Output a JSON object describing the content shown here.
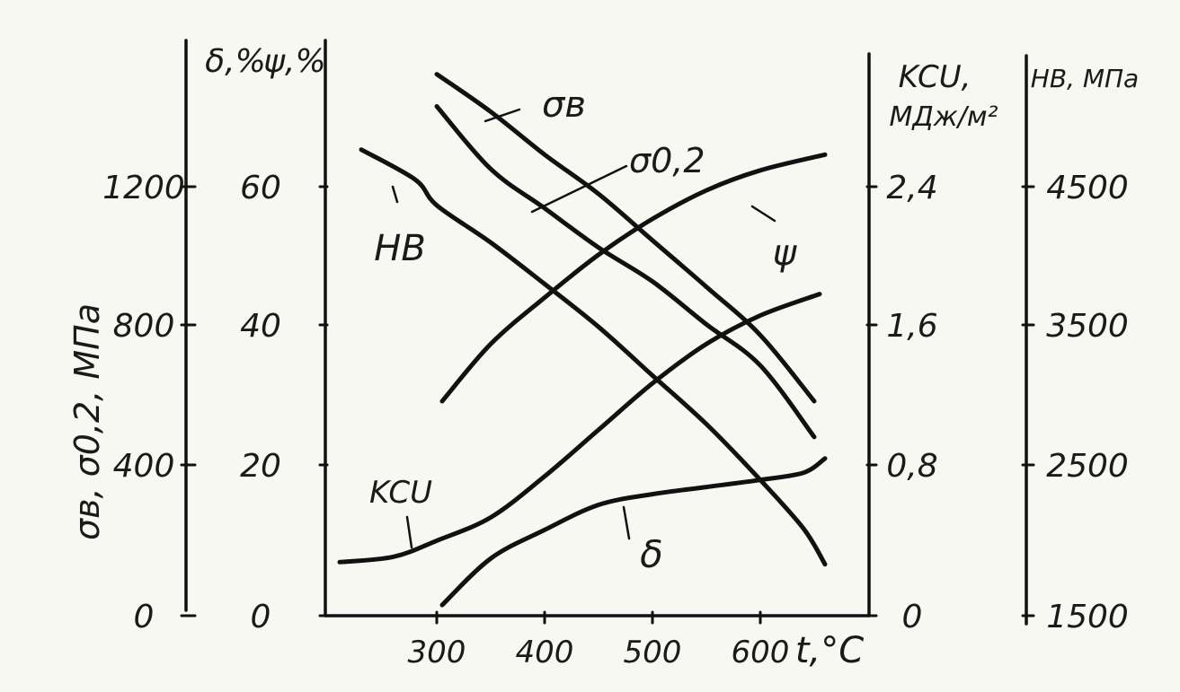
{
  "chart_data": {
    "type": "line",
    "x_axis": {
      "label": "t,°C",
      "ticks": [
        "300",
        "400",
        "500",
        "600"
      ],
      "range": [
        200,
        700
      ]
    },
    "axes": [
      {
        "id": "strength",
        "label": "σв, σ0,2, МПа",
        "ticks": [
          "0",
          "400",
          "800",
          "1200"
        ],
        "range": [
          0,
          1600
        ]
      },
      {
        "id": "percent",
        "label_delta": "δ,%",
        "label_psi": "ψ,%",
        "ticks": [
          "0",
          "20",
          "40",
          "60"
        ],
        "range": [
          0,
          80
        ]
      },
      {
        "id": "kcu",
        "label_line1": "KCU,",
        "label_line2": "МДж/м²",
        "ticks": [
          "0",
          "0,8",
          "1,6",
          "2,4"
        ],
        "range": [
          0,
          3.2
        ]
      },
      {
        "id": "hb",
        "label": "HB, МПа",
        "ticks": [
          "1500",
          "2500",
          "3500",
          "4500"
        ],
        "range": [
          1500,
          5500
        ]
      }
    ],
    "series": [
      {
        "name": "σв",
        "axis": "strength",
        "x": [
          300,
          350,
          400,
          450,
          500,
          550,
          600,
          650
        ],
        "y": [
          1515,
          1410,
          1290,
          1180,
          1050,
          920,
          785,
          600
        ]
      },
      {
        "name": "σ0,2",
        "axis": "strength",
        "x": [
          300,
          350,
          400,
          450,
          500,
          550,
          600,
          650
        ],
        "y": [
          1425,
          1250,
          1140,
          1030,
          935,
          815,
          700,
          500
        ]
      },
      {
        "name": "HB",
        "axis": "hb",
        "x": [
          230,
          280,
          300,
          350,
          400,
          450,
          500,
          550,
          600,
          640,
          660
        ],
        "y": [
          4760,
          4550,
          4370,
          4110,
          3820,
          3520,
          3180,
          2840,
          2450,
          2110,
          1860
        ]
      },
      {
        "name": "ψ",
        "axis": "percent",
        "x": [
          305,
          350,
          400,
          450,
          500,
          550,
          600,
          660
        ],
        "y": [
          30,
          38,
          44.5,
          50.5,
          55.5,
          59.5,
          62.3,
          64.5
        ]
      },
      {
        "name": "KCU",
        "axis": "kcu",
        "x": [
          210,
          260,
          300,
          350,
          400,
          450,
          500,
          550,
          600,
          655
        ],
        "y": [
          0.3,
          0.33,
          0.42,
          0.55,
          0.78,
          1.04,
          1.3,
          1.52,
          1.68,
          1.8
        ]
      },
      {
        "name": "δ",
        "axis": "percent",
        "x": [
          305,
          350,
          400,
          450,
          500,
          550,
          600,
          640,
          660
        ],
        "y": [
          1.5,
          8,
          12,
          15.5,
          17,
          18,
          19,
          20,
          22
        ]
      }
    ],
    "annotations": [
      "σв",
      "σ0,2",
      "HB",
      "ψ",
      "KCU",
      "δ"
    ]
  }
}
